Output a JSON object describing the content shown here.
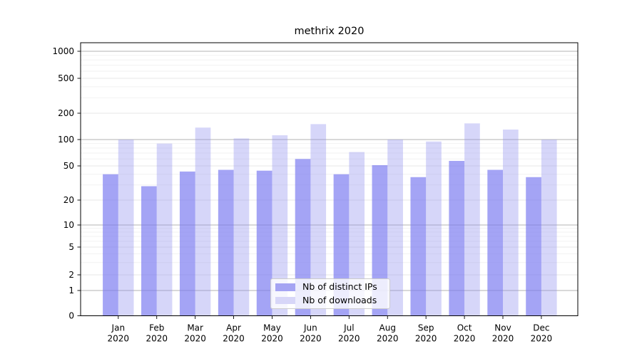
{
  "chart_data": {
    "type": "bar",
    "title": "methrix 2020",
    "months": [
      "Jan",
      "Feb",
      "Mar",
      "Apr",
      "May",
      "Jun",
      "Jul",
      "Aug",
      "Sep",
      "Oct",
      "Nov",
      "Dec"
    ],
    "year_label": "2020",
    "series": [
      {
        "name": "Nb of distinct IPs",
        "values": [
          40,
          29,
          43,
          45,
          44,
          60,
          40,
          51,
          37,
          57,
          45,
          37
        ],
        "fill": "rgba(120,119,240,0.67)",
        "legend_swatch": "#a5a4f3"
      },
      {
        "name": "Nb of downloads",
        "values": [
          100,
          90,
          137,
          103,
          112,
          150,
          72,
          100,
          95,
          153,
          130,
          100
        ],
        "fill": "rgba(142,141,238,0.36)",
        "legend_swatch": "#d7d6f8"
      }
    ],
    "y_axis": {
      "ticks": [
        0,
        1,
        2,
        5,
        10,
        20,
        50,
        100,
        200,
        500,
        1000
      ],
      "scale": "symlog",
      "range": [
        0,
        1000
      ]
    },
    "grid": {
      "major_color": "#b3b3b3",
      "labeled_color": "#e7e7e7",
      "minor_color": "#f2f2f2",
      "minor_ticks": [
        3,
        4,
        6,
        7,
        8,
        9,
        30,
        40,
        60,
        70,
        80,
        90,
        300,
        400,
        600,
        700,
        800,
        900
      ]
    },
    "legend": {
      "position": "inside bottom center"
    }
  }
}
